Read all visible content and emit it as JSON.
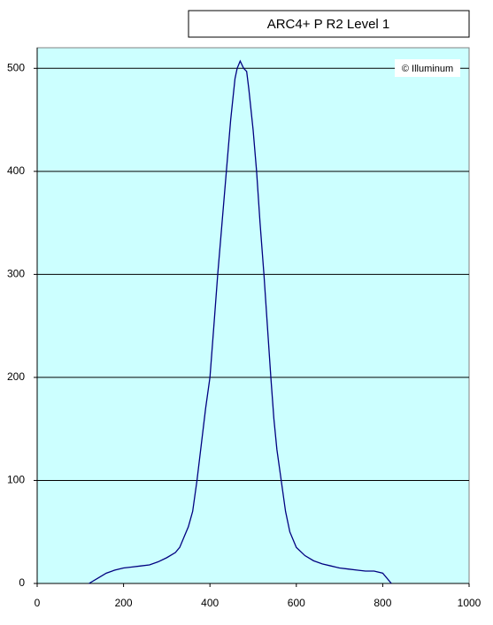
{
  "chart_data": {
    "type": "line",
    "title": "ARC4+ P R2 Level 1",
    "annotation": "© Illuminum",
    "x": [
      120,
      140,
      160,
      180,
      200,
      220,
      240,
      260,
      280,
      300,
      320,
      330,
      340,
      350,
      360,
      370,
      380,
      390,
      400,
      410,
      418,
      428,
      438,
      448,
      458,
      463,
      470,
      478,
      485,
      490,
      500,
      508,
      516,
      525,
      533,
      541,
      548,
      555,
      565,
      575,
      585,
      600,
      620,
      640,
      660,
      680,
      700,
      720,
      740,
      760,
      780,
      800,
      820
    ],
    "series": [
      {
        "color": "#000080",
        "values": [
          0,
          5,
          10,
          13,
          15,
          16,
          17,
          18,
          21,
          25,
          30,
          35,
          45,
          55,
          70,
          100,
          135,
          170,
          200,
          255,
          300,
          350,
          400,
          450,
          490,
          500,
          507,
          500,
          497,
          480,
          440,
          400,
          350,
          300,
          250,
          200,
          160,
          130,
          100,
          70,
          50,
          35,
          27,
          22,
          19,
          17,
          15,
          14,
          13,
          12,
          12,
          10,
          0
        ]
      }
    ],
    "xlim": [
      0,
      1000
    ],
    "xticks": [
      0,
      200,
      400,
      600,
      800,
      1000
    ],
    "ylim": [
      0,
      520
    ],
    "yticks": [
      0,
      100,
      200,
      300,
      400,
      500
    ],
    "grid": true,
    "background": "#ccffff"
  }
}
